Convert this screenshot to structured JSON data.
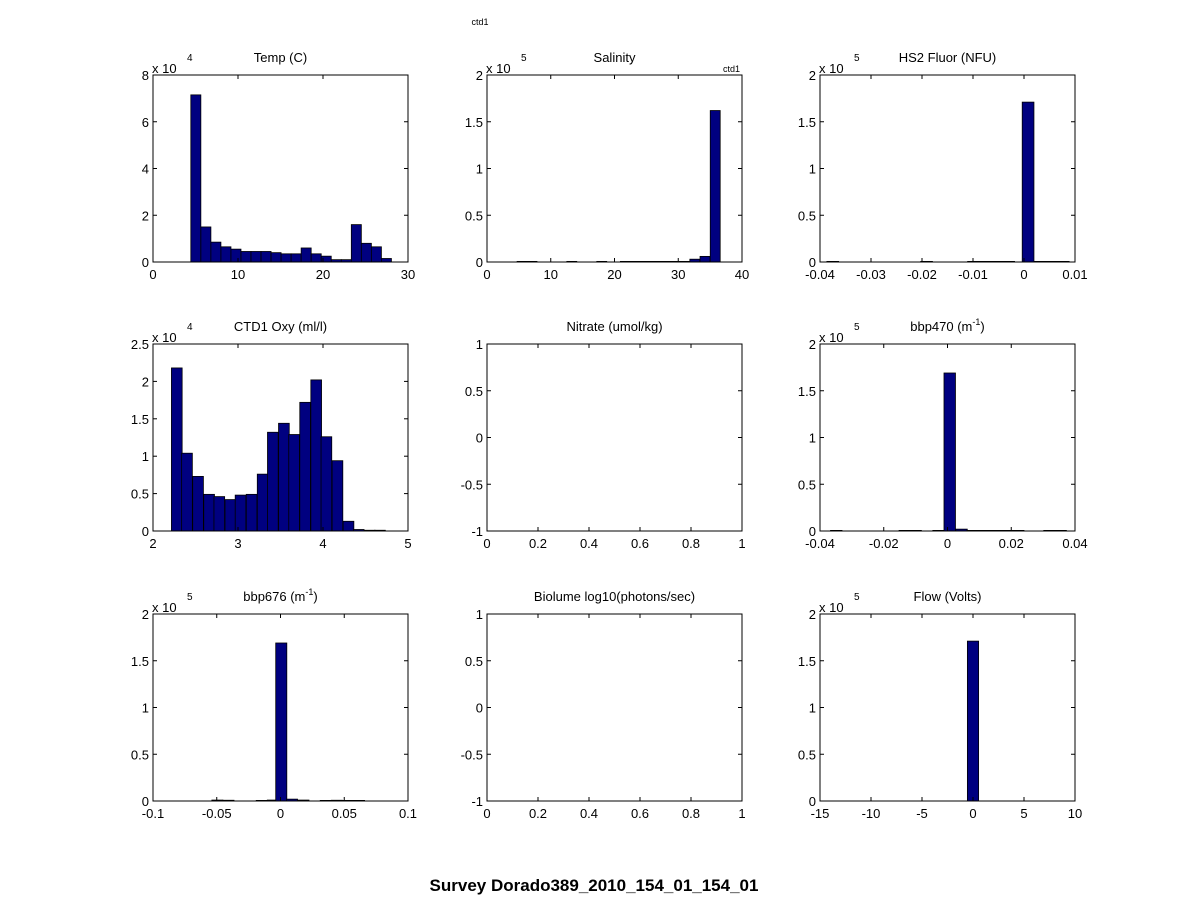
{
  "figure": {
    "top_label": "ctd1",
    "survey_title": "Survey Dorado389_2010_154_01_154_01",
    "bar_color": "#000080"
  },
  "chart_data": [
    {
      "type": "bar",
      "title": "Temp (C)",
      "title_sup": "",
      "exponent": "4",
      "corner_label": "",
      "xlim": [
        0,
        30
      ],
      "xticks": [
        "0",
        "10",
        "20",
        "30"
      ],
      "xtick_values": [
        0,
        10,
        20,
        30
      ],
      "ylim": [
        0,
        8
      ],
      "yticks": [
        "0",
        "2",
        "4",
        "6",
        "8"
      ],
      "ytick_values": [
        0,
        2,
        4,
        6,
        8
      ],
      "bin_width": 1.18,
      "x": [
        5.04,
        6.22,
        7.4,
        8.58,
        9.76,
        10.94,
        12.12,
        13.3,
        14.48,
        15.66,
        16.84,
        18.02,
        19.2,
        20.38,
        21.56,
        22.74,
        23.92,
        25.1,
        26.28,
        27.46
      ],
      "values": [
        7.15,
        1.5,
        0.85,
        0.65,
        0.55,
        0.45,
        0.45,
        0.45,
        0.4,
        0.35,
        0.35,
        0.6,
        0.35,
        0.25,
        0.1,
        0.1,
        1.6,
        0.8,
        0.65,
        0.15
      ]
    },
    {
      "type": "bar",
      "title": "Salinity",
      "title_sup": "",
      "exponent": "5",
      "corner_label": "ctd1",
      "xlim": [
        0,
        40
      ],
      "xticks": [
        "0",
        "10",
        "20",
        "30",
        "40"
      ],
      "xtick_values": [
        0,
        10,
        20,
        30,
        40
      ],
      "ylim": [
        0,
        2
      ],
      "yticks": [
        "0",
        "0.5",
        "1",
        "1.5",
        "2"
      ],
      "ytick_values": [
        0,
        0.5,
        1,
        1.5,
        2
      ],
      "bin_width": 1.56,
      "x": [
        5.5,
        7.06,
        13.3,
        18.0,
        21.7,
        23.3,
        24.8,
        26.4,
        28.0,
        29.5,
        31.1,
        32.6,
        34.2,
        35.8
      ],
      "values": [
        0.003,
        0.003,
        0.003,
        0.003,
        0.003,
        0.003,
        0.003,
        0.003,
        0.003,
        0.003,
        0.003,
        0.03,
        0.06,
        1.62
      ]
    },
    {
      "type": "bar",
      "title": "HS2 Fluor (NFU)",
      "title_sup": "",
      "exponent": "5",
      "corner_label": "",
      "xlim": [
        -0.04,
        0.01
      ],
      "xticks": [
        "-0.04",
        "-0.03",
        "-0.02",
        "-0.01",
        "0",
        "0.01"
      ],
      "xtick_values": [
        -0.04,
        -0.03,
        -0.02,
        -0.01,
        0,
        0.01
      ],
      "ylim": [
        0,
        2
      ],
      "yticks": [
        "0",
        "0.5",
        "1",
        "1.5",
        "2"
      ],
      "ytick_values": [
        0,
        0.5,
        1,
        1.5,
        2
      ],
      "bin_width": 0.0023,
      "x": [
        -0.0375,
        -0.0191,
        -0.0099,
        -0.0076,
        -0.0053,
        -0.003,
        0.0008,
        0.0031,
        0.0054,
        0.0077
      ],
      "values": [
        0.003,
        0.003,
        0.003,
        0.003,
        0.003,
        0.003,
        1.71,
        0.003,
        0.003,
        0.003
      ]
    },
    {
      "type": "bar",
      "title": "CTD1 Oxy (ml/l)",
      "title_sup": "",
      "exponent": "4",
      "corner_label": "",
      "xlim": [
        2,
        5
      ],
      "xticks": [
        "2",
        "3",
        "4",
        "5"
      ],
      "xtick_values": [
        2,
        3,
        4,
        5
      ],
      "ylim": [
        0,
        2.5
      ],
      "yticks": [
        "0",
        "0.5",
        "1",
        "1.5",
        "2",
        "2.5"
      ],
      "ytick_values": [
        0,
        0.5,
        1,
        1.5,
        2,
        2.5
      ],
      "bin_width": 0.126,
      "x": [
        2.28,
        2.4,
        2.53,
        2.66,
        2.78,
        2.91,
        3.03,
        3.16,
        3.29,
        3.41,
        3.54,
        3.66,
        3.79,
        3.92,
        4.04,
        4.17,
        4.3,
        4.42,
        4.55,
        4.67
      ],
      "values": [
        2.18,
        1.04,
        0.73,
        0.49,
        0.46,
        0.42,
        0.48,
        0.49,
        0.76,
        1.32,
        1.44,
        1.29,
        1.72,
        2.02,
        1.26,
        0.94,
        0.13,
        0.02,
        0.01,
        0.01
      ]
    },
    {
      "type": "bar",
      "title": "Nitrate (umol/kg)",
      "title_sup": "",
      "exponent": "",
      "corner_label": "",
      "xlim": [
        0,
        1
      ],
      "xticks": [
        "0",
        "0.2",
        "0.4",
        "0.6",
        "0.8",
        "1"
      ],
      "xtick_values": [
        0,
        0.2,
        0.4,
        0.6,
        0.8,
        1
      ],
      "ylim": [
        -1,
        1
      ],
      "yticks": [
        "-1",
        "-0.5",
        "0",
        "0.5",
        "1"
      ],
      "ytick_values": [
        -1,
        -0.5,
        0,
        0.5,
        1
      ],
      "bin_width": 0,
      "x": [],
      "values": []
    },
    {
      "type": "bar",
      "title": "bbp470 (m",
      "title_sup": "-1",
      "exponent": "5",
      "corner_label": "",
      "xlim": [
        -0.04,
        0.04
      ],
      "xticks": [
        "-0.04",
        "-0.02",
        "0",
        "0.02",
        "0.04"
      ],
      "xtick_values": [
        -0.04,
        -0.02,
        0,
        0.02,
        0.04
      ],
      "ylim": [
        0,
        2
      ],
      "yticks": [
        "0",
        "0.5",
        "1",
        "1.5",
        "2"
      ],
      "ytick_values": [
        0,
        0.5,
        1,
        1.5,
        2
      ],
      "bin_width": 0.0036,
      "x": [
        -0.0349,
        -0.0134,
        -0.01,
        -0.0028,
        0.0007,
        0.0044,
        0.0079,
        0.0115,
        0.015,
        0.0186,
        0.0222,
        0.032,
        0.0355
      ],
      "values": [
        0.005,
        0.003,
        0.003,
        0.003,
        1.69,
        0.02,
        0.005,
        0.005,
        0.005,
        0.005,
        0.005,
        0.005,
        0.005
      ]
    },
    {
      "type": "bar",
      "title": "bbp676 (m",
      "title_sup": "-1",
      "exponent": "5",
      "corner_label": "",
      "xlim": [
        -0.1,
        0.1
      ],
      "xticks": [
        "-0.1",
        "-0.05",
        "0",
        "0.05",
        "0.1"
      ],
      "xtick_values": [
        -0.1,
        -0.05,
        0,
        0.05,
        0.1
      ],
      "ylim": [
        0,
        2
      ],
      "yticks": [
        "0",
        "0.5",
        "1",
        "1.5",
        "2"
      ],
      "ytick_values": [
        0,
        0.5,
        1,
        1.5,
        2
      ],
      "bin_width": 0.0087,
      "x": [
        -0.0495,
        -0.0408,
        -0.0147,
        -0.006,
        0.0006,
        0.009,
        0.018,
        0.0355,
        0.0442,
        0.0529,
        0.0616
      ],
      "values": [
        0.01,
        0.008,
        0.003,
        0.01,
        1.69,
        0.02,
        0.01,
        0.005,
        0.008,
        0.003,
        0.005
      ]
    },
    {
      "type": "bar",
      "title": "Biolume log10(photons/sec)",
      "title_sup": "",
      "exponent": "",
      "corner_label": "",
      "xlim": [
        0,
        1
      ],
      "xticks": [
        "0",
        "0.2",
        "0.4",
        "0.6",
        "0.8",
        "1"
      ],
      "xtick_values": [
        0,
        0.2,
        0.4,
        0.6,
        0.8,
        1
      ],
      "ylim": [
        -1,
        1
      ],
      "yticks": [
        "-1",
        "-0.5",
        "0",
        "0.5",
        "1"
      ],
      "ytick_values": [
        -1,
        -0.5,
        0,
        0.5,
        1
      ],
      "bin_width": 0,
      "x": [],
      "values": []
    },
    {
      "type": "bar",
      "title": "Flow (Volts)",
      "title_sup": "",
      "exponent": "5",
      "corner_label": "",
      "xlim": [
        -15,
        10
      ],
      "xticks": [
        "-15",
        "-10",
        "-5",
        "0",
        "5",
        "10"
      ],
      "xtick_values": [
        -15,
        -10,
        -5,
        0,
        5,
        10
      ],
      "ylim": [
        0,
        2
      ],
      "yticks": [
        "0",
        "0.5",
        "1",
        "1.5",
        "2"
      ],
      "ytick_values": [
        0,
        0.5,
        1,
        1.5,
        2
      ],
      "bin_width": 1.1,
      "x": [
        0.0
      ],
      "values": [
        1.71
      ]
    }
  ]
}
